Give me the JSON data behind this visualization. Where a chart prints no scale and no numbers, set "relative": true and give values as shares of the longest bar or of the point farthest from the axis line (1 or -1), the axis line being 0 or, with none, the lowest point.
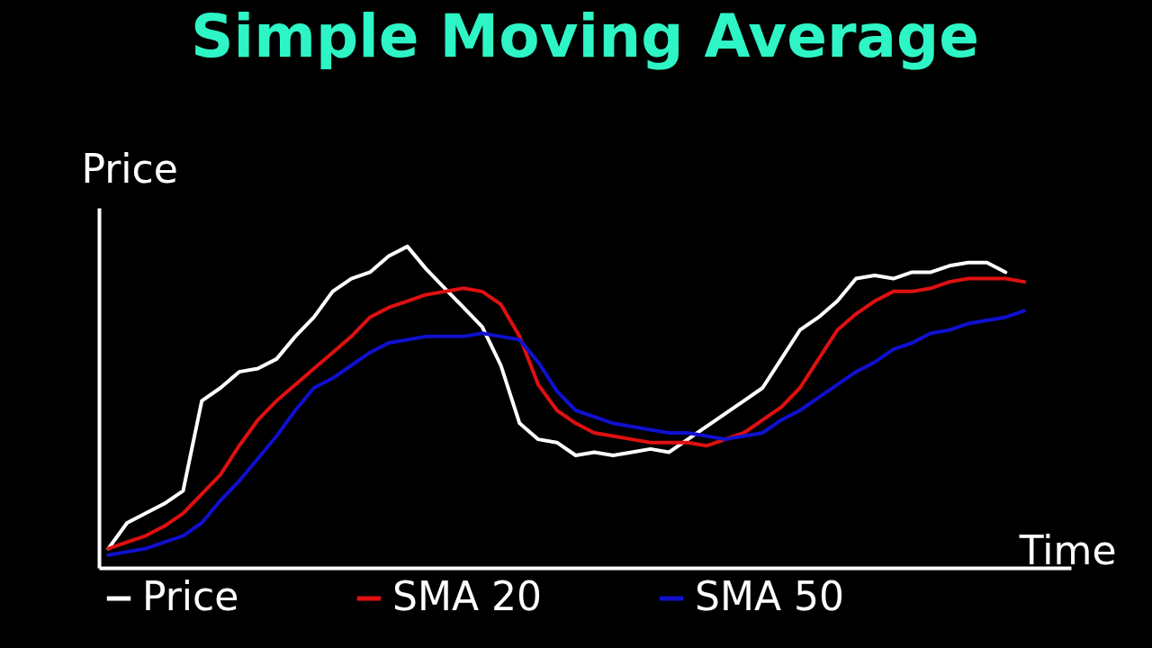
{
  "chart_data": {
    "type": "line",
    "title": "Simple Moving Average",
    "xlabel": "Time",
    "ylabel": "Price",
    "relative": true,
    "legend": "bottom",
    "line_style": "solid",
    "categories": [
      null,
      null,
      null,
      null,
      null,
      null,
      null,
      null,
      null,
      null,
      null,
      null,
      null,
      null,
      null,
      null,
      null,
      null,
      null,
      null,
      null,
      null,
      null,
      null,
      null,
      null,
      null,
      null,
      null,
      null,
      null,
      null,
      null,
      null,
      null,
      null,
      null,
      null,
      null,
      null,
      null,
      null,
      null,
      null,
      null,
      null,
      null,
      null,
      null,
      null
    ],
    "series": [
      {
        "name": "Price",
        "color": "#ffffff",
        "values": [
          0.06,
          0.14,
          0.17,
          0.2,
          0.24,
          0.52,
          0.56,
          0.61,
          0.62,
          0.65,
          0.72,
          0.78,
          0.86,
          0.9,
          0.92,
          0.97,
          1,
          0.93,
          0.87,
          0.81,
          0.75,
          0.63,
          0.45,
          0.4,
          0.39,
          0.35,
          0.36,
          0.35,
          0.36,
          0.37,
          0.36,
          0.4,
          0.44,
          0.48,
          0.52,
          0.56,
          0.65,
          0.74,
          0.78,
          0.83,
          0.9,
          0.91,
          0.9,
          0.92,
          0.92,
          0.94,
          0.95,
          0.95,
          0.92,
          null
        ]
      },
      {
        "name": "SMA 20",
        "color": "#e01010",
        "values": [
          0.06,
          0.08,
          0.1,
          0.13,
          0.17,
          0.23,
          0.29,
          0.38,
          0.46,
          0.52,
          0.57,
          0.62,
          0.67,
          0.72,
          0.78,
          0.81,
          0.83,
          0.85,
          0.86,
          0.87,
          0.86,
          0.82,
          0.72,
          0.57,
          0.49,
          0.45,
          0.42,
          0.41,
          0.4,
          0.39,
          0.39,
          0.39,
          0.38,
          0.4,
          0.42,
          0.46,
          0.5,
          0.56,
          0.65,
          0.74,
          0.79,
          0.83,
          0.86,
          0.86,
          0.87,
          0.89,
          0.9,
          0.9,
          0.9,
          0.89
        ]
      },
      {
        "name": "SMA 50",
        "color": "#1010d0",
        "values": [
          0.04,
          0.05,
          0.06,
          0.08,
          0.1,
          0.14,
          0.21,
          0.27,
          0.34,
          0.41,
          0.49,
          0.56,
          0.59,
          0.63,
          0.67,
          0.7,
          0.71,
          0.72,
          0.72,
          0.72,
          0.73,
          0.72,
          0.71,
          0.64,
          0.55,
          0.49,
          0.47,
          0.45,
          0.44,
          0.43,
          0.42,
          0.42,
          0.41,
          0.4,
          0.41,
          0.42,
          0.46,
          0.49,
          0.53,
          0.57,
          0.61,
          0.64,
          0.68,
          0.7,
          0.73,
          0.74,
          0.76,
          0.77,
          0.78,
          0.8
        ]
      }
    ]
  }
}
